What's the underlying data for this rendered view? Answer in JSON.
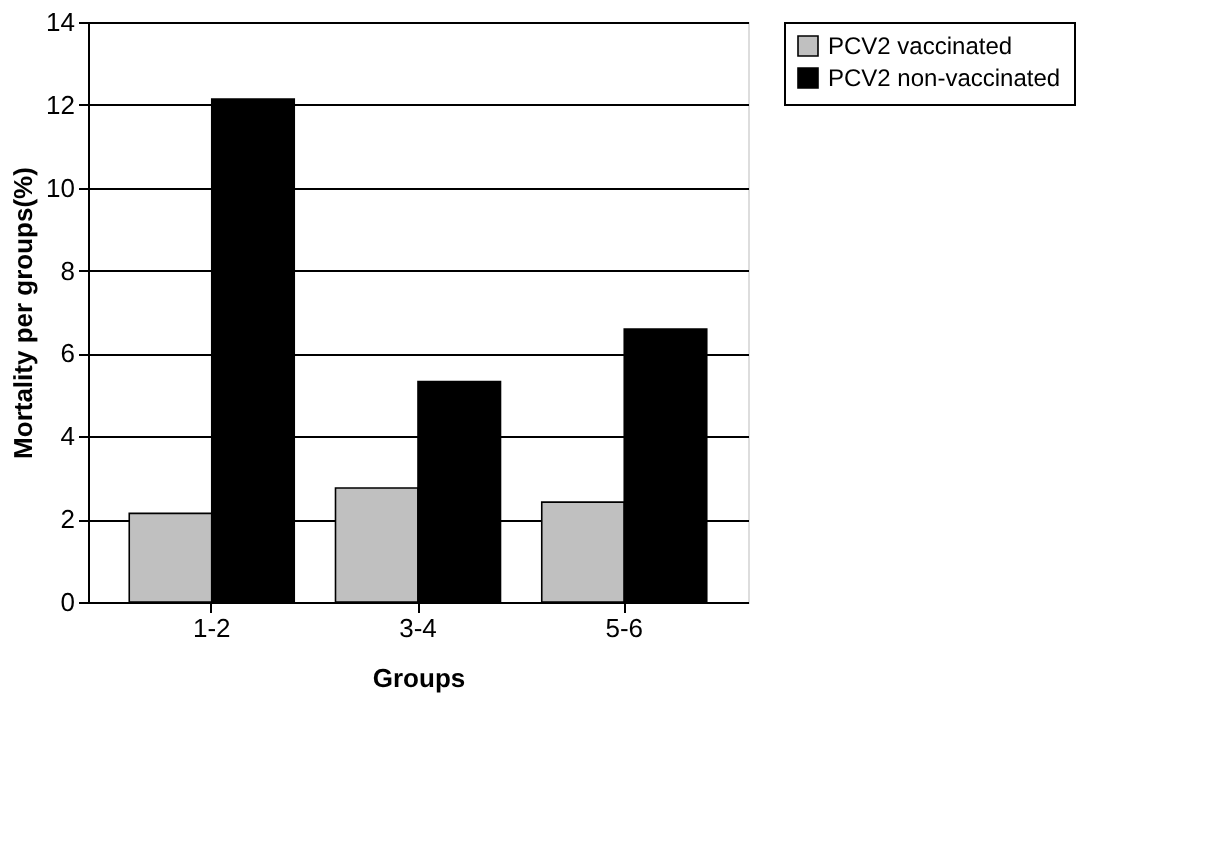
{
  "chart_data": {
    "type": "bar",
    "xlabel": "Groups",
    "ylabel": "Mortality per groups(%)",
    "categories": [
      "1-2",
      "3-4",
      "5-6"
    ],
    "series": [
      {
        "name": "PCV2 vaccinated",
        "color": "#c0c0c0",
        "values": [
          2.14,
          2.75,
          2.41
        ]
      },
      {
        "name": "PCV2 non-vaccinated",
        "color": "#000000",
        "values": [
          12.14,
          5.32,
          6.59
        ]
      }
    ],
    "ylim": [
      0,
      14
    ],
    "yticks": [
      0,
      2,
      4,
      6,
      8,
      10,
      12,
      14
    ],
    "grid": "y",
    "legend": "right"
  }
}
